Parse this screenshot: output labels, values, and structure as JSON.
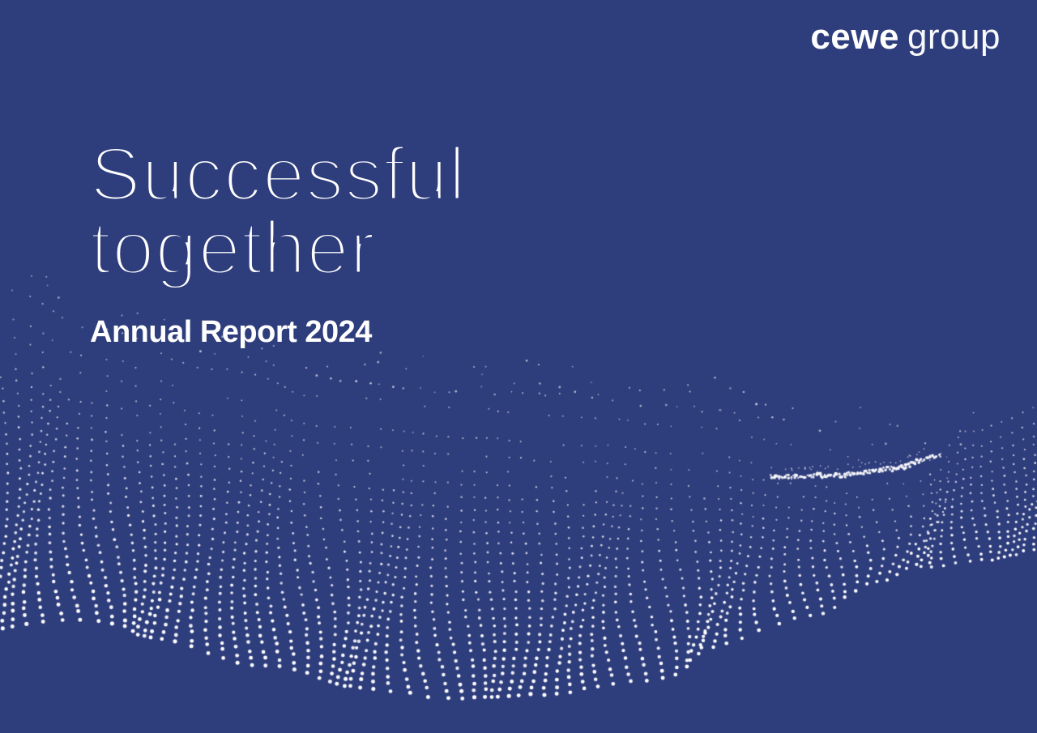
{
  "brand": {
    "name_bold": "cewe",
    "name_light": "group"
  },
  "cover": {
    "title_line1": "Successful",
    "title_line2": "together",
    "subtitle": "Annual Report 2024"
  },
  "theme": {
    "background": "#2E3D7C",
    "text_color": "#FFFFFF",
    "dot_color": "#FFFFFF"
  }
}
